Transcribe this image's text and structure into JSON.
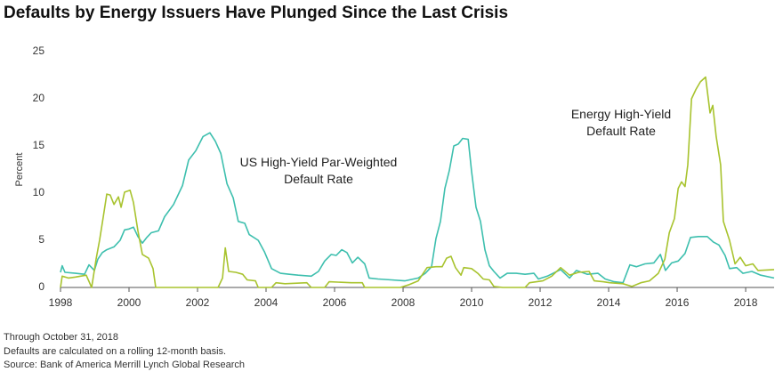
{
  "chart_data": {
    "type": "line",
    "title": "Defaults by Energy Issuers Have Plunged Since the Last Crisis",
    "y_label": "Percent",
    "notes": [
      "Through October 31, 2018",
      "Defaults are calculated on a rolling 12-month basis.",
      "Source: Bank of America Merrill Lynch Global Research"
    ],
    "xlim": [
      1998,
      2018.83
    ],
    "xticks": [
      1998,
      2000,
      2002,
      2004,
      2006,
      2008,
      2010,
      2012,
      2014,
      2016,
      2018
    ],
    "ylim": [
      0,
      25
    ],
    "yticks": [
      0,
      5,
      10,
      15,
      20,
      25
    ],
    "grid": false,
    "series": [
      {
        "name": "US High-Yield Par-Weighted Default Rate",
        "color": "#3dbfae",
        "x": [
          1998.0,
          1998.05,
          1998.13,
          1998.44,
          1998.7,
          1998.83,
          1998.99,
          1999.09,
          1999.22,
          1999.35,
          1999.56,
          1999.74,
          1999.87,
          2000.0,
          2000.13,
          2000.26,
          2000.39,
          2000.52,
          2000.65,
          2000.86,
          2001.04,
          2001.3,
          2001.56,
          2001.74,
          2001.95,
          2002.16,
          2002.36,
          2002.52,
          2002.68,
          2002.86,
          2003.04,
          2003.19,
          2003.38,
          2003.51,
          2003.77,
          2003.95,
          2004.16,
          2004.42,
          2004.68,
          2004.94,
          2005.32,
          2005.53,
          2005.71,
          2005.9,
          2006.05,
          2006.21,
          2006.36,
          2006.52,
          2006.68,
          2006.88,
          2007.01,
          2007.27,
          2007.66,
          2008.05,
          2008.44,
          2008.65,
          2008.83,
          2008.96,
          2009.09,
          2009.22,
          2009.35,
          2009.48,
          2009.61,
          2009.74,
          2009.9,
          2010.0,
          2010.13,
          2010.26,
          2010.39,
          2010.52,
          2010.65,
          2010.83,
          2011.04,
          2011.3,
          2011.56,
          2011.82,
          2011.95,
          2012.21,
          2012.6,
          2012.86,
          2013.06,
          2013.38,
          2013.69,
          2013.9,
          2014.16,
          2014.42,
          2014.62,
          2014.81,
          2015.06,
          2015.32,
          2015.51,
          2015.66,
          2015.84,
          2016.03,
          2016.23,
          2016.39,
          2016.62,
          2016.88,
          2017.06,
          2017.22,
          2017.4,
          2017.53,
          2017.74,
          2017.92,
          2018.18,
          2018.44,
          2018.83
        ],
        "values": [
          1.6,
          2.3,
          1.6,
          1.5,
          1.4,
          2.4,
          1.8,
          3.0,
          3.7,
          4.0,
          4.3,
          5.0,
          6.1,
          6.2,
          6.4,
          5.4,
          4.7,
          5.3,
          5.8,
          6.0,
          7.5,
          8.8,
          10.8,
          13.5,
          14.5,
          16.0,
          16.4,
          15.5,
          14.2,
          11.0,
          9.5,
          7.0,
          6.8,
          5.6,
          5.0,
          3.8,
          2.0,
          1.5,
          1.4,
          1.3,
          1.2,
          1.7,
          2.8,
          3.5,
          3.4,
          4.0,
          3.7,
          2.6,
          3.2,
          2.5,
          1.0,
          0.9,
          0.8,
          0.7,
          1.0,
          1.5,
          2.2,
          5.2,
          7.0,
          10.5,
          12.4,
          15.0,
          15.2,
          15.8,
          15.7,
          12.3,
          8.5,
          7.0,
          4.0,
          2.3,
          1.7,
          1.0,
          1.5,
          1.5,
          1.4,
          1.5,
          0.9,
          1.2,
          1.9,
          1.0,
          1.8,
          1.4,
          1.5,
          0.9,
          0.6,
          0.5,
          2.4,
          2.2,
          2.5,
          2.6,
          3.5,
          1.8,
          2.6,
          2.8,
          3.6,
          5.3,
          5.4,
          5.4,
          4.8,
          4.5,
          3.4,
          2.0,
          2.1,
          1.5,
          1.7,
          1.3,
          1.0
        ]
      },
      {
        "name": "Energy High-Yield Default Rate",
        "color": "#a8c32e",
        "x": [
          1998.0,
          1998.05,
          1998.23,
          1998.44,
          1998.75,
          1998.91,
          1999.04,
          1999.14,
          1999.25,
          1999.35,
          1999.45,
          1999.56,
          1999.69,
          1999.77,
          1999.87,
          2000.03,
          2000.13,
          2000.26,
          2000.39,
          2000.57,
          2000.7,
          2000.78,
          2002.6,
          2002.73,
          2002.81,
          2002.91,
          2003.12,
          2003.32,
          2003.45,
          2003.69,
          2003.77,
          2004.16,
          2004.29,
          2004.55,
          2005.19,
          2005.32,
          2005.71,
          2005.84,
          2006.49,
          2006.81,
          2006.88,
          2007.92,
          2008.18,
          2008.44,
          2008.7,
          2008.96,
          2009.14,
          2009.27,
          2009.4,
          2009.53,
          2009.69,
          2009.77,
          2010.0,
          2010.18,
          2010.34,
          2010.52,
          2010.65,
          2010.91,
          2011.56,
          2011.69,
          2012.08,
          2012.34,
          2012.6,
          2012.86,
          2013.12,
          2013.43,
          2013.58,
          2013.84,
          2014.03,
          2014.42,
          2014.68,
          2014.94,
          2015.19,
          2015.45,
          2015.64,
          2015.77,
          2015.92,
          2016.03,
          2016.13,
          2016.23,
          2016.31,
          2016.42,
          2016.55,
          2016.68,
          2016.83,
          2016.96,
          2017.04,
          2017.14,
          2017.27,
          2017.35,
          2017.53,
          2017.69,
          2017.84,
          2018.0,
          2018.21,
          2018.36,
          2018.83
        ],
        "values": [
          0,
          1.2,
          1.0,
          1.1,
          1.3,
          0,
          3.0,
          5.0,
          7.5,
          9.9,
          9.8,
          8.8,
          9.6,
          8.5,
          10.1,
          10.3,
          9.0,
          6.0,
          3.5,
          3.1,
          2.0,
          0,
          0,
          1.0,
          4.2,
          1.7,
          1.6,
          1.4,
          0.8,
          0.7,
          0,
          0,
          0.5,
          0.4,
          0.5,
          0,
          0,
          0.6,
          0.5,
          0.5,
          0,
          0,
          0.3,
          0.7,
          2.1,
          2.2,
          2.2,
          3.1,
          3.3,
          2.1,
          1.3,
          2.1,
          2.0,
          1.5,
          0.9,
          0.8,
          0.1,
          0,
          0,
          0.5,
          0.7,
          1.2,
          2.1,
          1.3,
          1.6,
          1.7,
          0.7,
          0.6,
          0.5,
          0.4,
          0.1,
          0.5,
          0.7,
          1.5,
          3.0,
          5.8,
          7.3,
          10.5,
          11.2,
          10.7,
          13.0,
          20.0,
          21.0,
          21.8,
          22.3,
          18.5,
          19.3,
          16.0,
          13.0,
          7.0,
          5.0,
          2.5,
          3.2,
          2.3,
          2.5,
          1.8,
          1.9
        ]
      }
    ]
  }
}
